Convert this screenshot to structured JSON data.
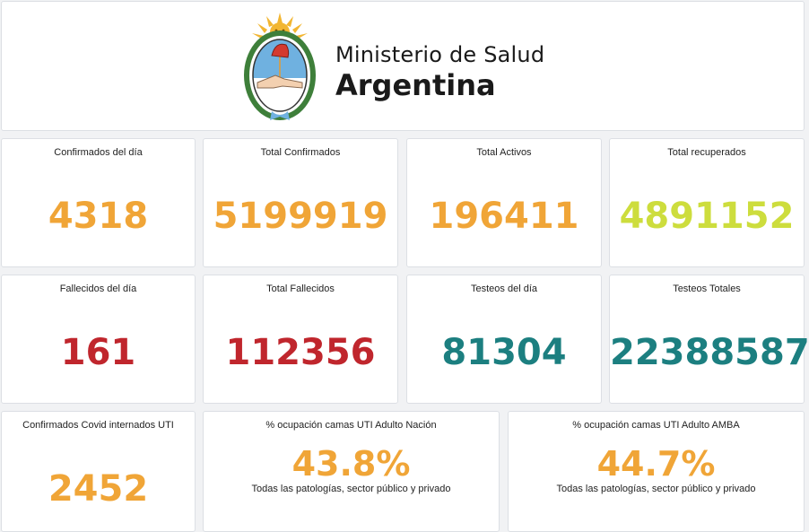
{
  "header": {
    "title_line1": "Ministerio de Salud",
    "title_line2": "Argentina"
  },
  "stats": [
    {
      "label": "Confirmados del día",
      "value": "4318",
      "color": "#f0a537"
    },
    {
      "label": "Total Confirmados",
      "value": "5199919",
      "color": "#f0a537"
    },
    {
      "label": "Total Activos",
      "value": "196411",
      "color": "#f0a537"
    },
    {
      "label": "Total recuperados",
      "value": "4891152",
      "color": "#cddd3d"
    },
    {
      "label": "Fallecidos del día",
      "value": "161",
      "color": "#c0262d"
    },
    {
      "label": "Total Fallecidos",
      "value": "112356",
      "color": "#c0262d"
    },
    {
      "label": "Testeos del día",
      "value": "81304",
      "color": "#1c7f80"
    },
    {
      "label": "Testeos Totales",
      "value": "22388587",
      "color": "#1c7f80"
    },
    {
      "label": "Confirmados Covid internados UTI",
      "value": "2452",
      "color": "#f0a537"
    }
  ],
  "occupancy": [
    {
      "label": "% ocupación camas UTI Adulto Nación",
      "value": "43.8%",
      "sub": "Todas las patologías, sector público y privado"
    },
    {
      "label": "% ocupación camas UTI Adulto AMBA",
      "value": "44.7%",
      "sub": "Todas las patologías, sector público y privado"
    }
  ]
}
